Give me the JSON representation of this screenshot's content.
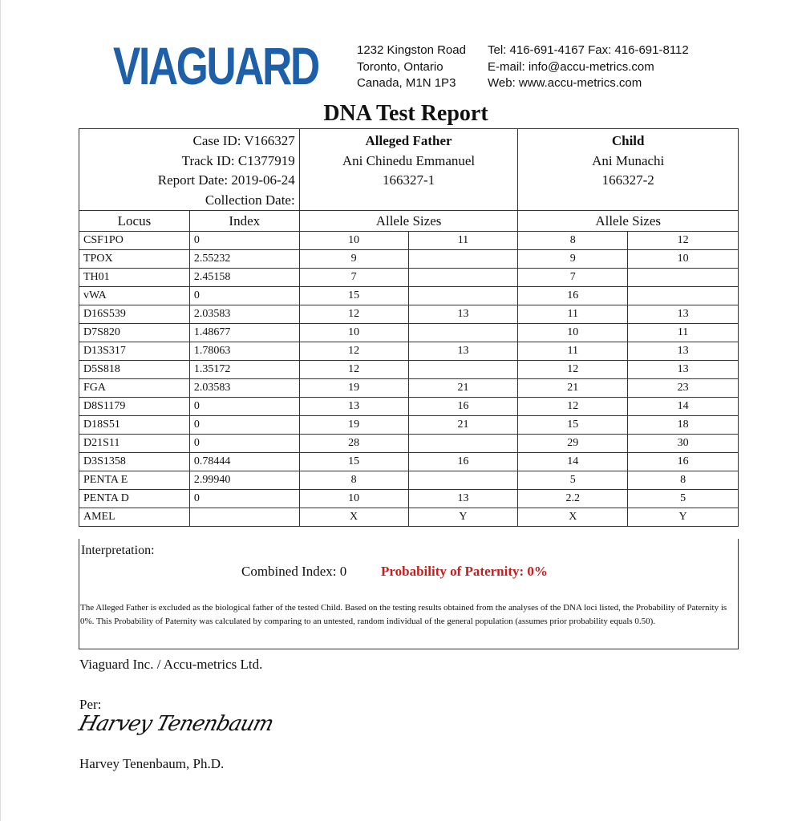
{
  "header": {
    "logo_text": "VIAGUARD",
    "address": [
      "1232 Kingston Road",
      "Toronto, Ontario",
      "Canada, M1N 1P3"
    ],
    "contact": [
      "Tel: 416-691-4167 Fax: 416-691-8112",
      "E-mail: info@accu-metrics.com",
      "Web: www.accu-metrics.com"
    ],
    "brand_color": "#1d5fa8"
  },
  "title": "DNA Test Report",
  "case": {
    "case_id": "Case ID: V166327",
    "track_id": "Track ID: C1377919",
    "report_date": "Report Date: 2019-06-24",
    "collection_date": "Collection Date:"
  },
  "father": {
    "heading": "Alleged Father",
    "name": "Ani Chinedu Emmanuel",
    "id": "166327-1"
  },
  "child": {
    "heading": "Child",
    "name": "Ani Munachi",
    "id": "166327-2"
  },
  "columns": {
    "locus": "Locus",
    "index": "Index",
    "allele_father": "Allele Sizes",
    "allele_child": "Allele Sizes"
  },
  "rows": [
    [
      "CSF1PO",
      "0",
      "10",
      "11",
      "8",
      "12"
    ],
    [
      "TPOX",
      "2.55232",
      "9",
      "",
      "9",
      "10"
    ],
    [
      "TH01",
      "2.45158",
      "7",
      "",
      "7",
      ""
    ],
    [
      "vWA",
      "0",
      "15",
      "",
      "16",
      ""
    ],
    [
      "D16S539",
      "2.03583",
      "12",
      "13",
      "11",
      "13"
    ],
    [
      "D7S820",
      "1.48677",
      "10",
      "",
      "10",
      "11"
    ],
    [
      "D13S317",
      "1.78063",
      "12",
      "13",
      "11",
      "13"
    ],
    [
      "D5S818",
      "1.35172",
      "12",
      "",
      "12",
      "13"
    ],
    [
      "FGA",
      "2.03583",
      "19",
      "21",
      "21",
      "23"
    ],
    [
      "D8S1179",
      "0",
      "13",
      "16",
      "12",
      "14"
    ],
    [
      "D18S51",
      "0",
      "19",
      "21",
      "15",
      "18"
    ],
    [
      "D21S11",
      "0",
      "28",
      "",
      "29",
      "30"
    ],
    [
      "D3S1358",
      "0.78444",
      "15",
      "16",
      "14",
      "16"
    ],
    [
      "PENTA E",
      "2.99940",
      "8",
      "",
      "5",
      "8"
    ],
    [
      "PENTA D",
      "0",
      "10",
      "13",
      "2.2",
      "5"
    ],
    [
      "AMEL",
      "",
      "X",
      "Y",
      "X",
      "Y"
    ]
  ],
  "interpretation": {
    "label": "Interpretation:",
    "combined_index": "Combined Index: 0",
    "probability": "Probability of Paternity: 0%",
    "probability_color": "#c21f1f",
    "note": "The Alleged Father is excluded as the biological father of the tested Child. Based on the testing results obtained from the analyses of the DNA loci listed, the Probability of Paternity is 0%. This Probability of Paternity was calculated by comparing to an untested, random individual of the general population (assumes prior probability equals 0.50)."
  },
  "footer": {
    "company": "Viaguard Inc. / Accu-metrics Ltd.",
    "per": "Per:",
    "signature": "Harvey Tenenbaum",
    "signer": "Harvey Tenenbaum, Ph.D."
  }
}
